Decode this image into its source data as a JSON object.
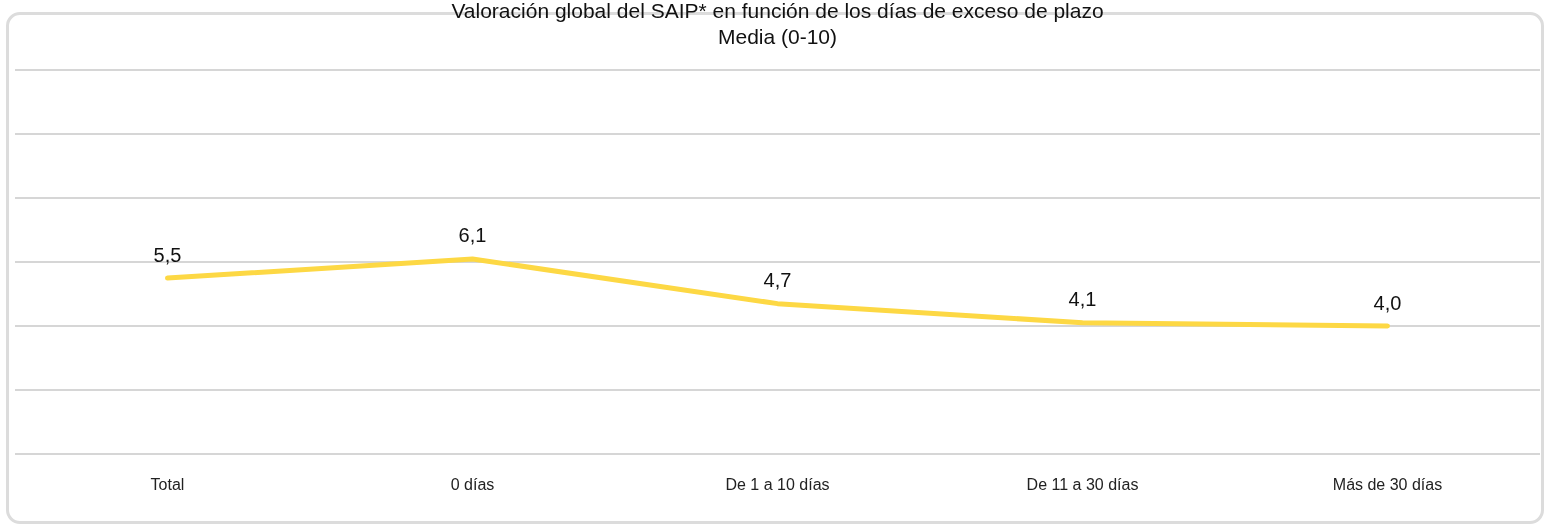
{
  "chart_data": {
    "type": "line",
    "title": "Valoración global del SAIP* en función de los días de exceso de plazo",
    "subtitle": "Media (0-10)",
    "categories": [
      "Total",
      "0 días",
      "De 1 a 10 días",
      "De 11 a 30 días",
      "Más de 30 días"
    ],
    "series": [
      {
        "color": "#fdd844",
        "values": [
          5.5,
          6.1,
          4.7,
          4.1,
          4.0
        ],
        "value_labels": [
          "5,5",
          "6,1",
          "4,7",
          "4,1",
          "4,0"
        ]
      }
    ],
    "ylim": [
      0,
      12
    ],
    "yticks": [
      {
        "value": 0,
        "label": null
      },
      {
        "value": 2,
        "label": null
      },
      {
        "value": 4,
        "label": null
      },
      {
        "value": 6,
        "label": null
      },
      {
        "value": 8,
        "label": null
      },
      {
        "value": 10,
        "label": null
      },
      {
        "value": 12,
        "label": null
      }
    ],
    "tick_labels": "x",
    "grid": "y",
    "legend": false,
    "marker": "none",
    "line_style": "solid"
  }
}
